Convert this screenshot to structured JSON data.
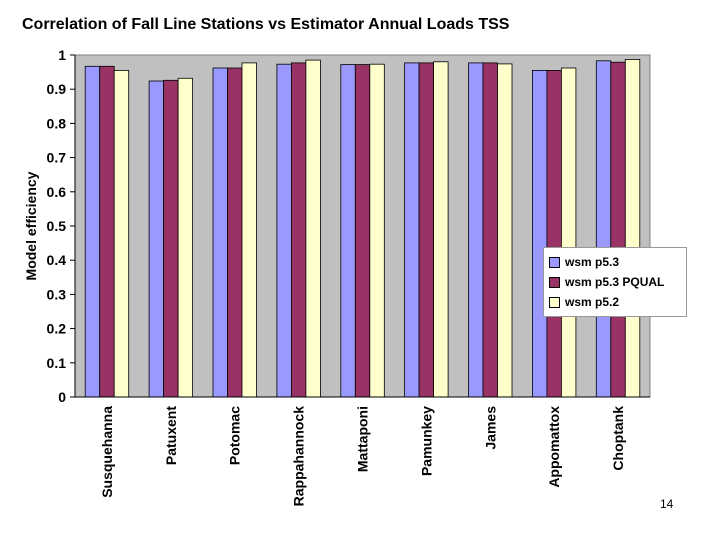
{
  "slide": {
    "number": "14"
  },
  "colors": {
    "plot_bg": "#c0c0c0",
    "s1": "#9999ff",
    "s2": "#993366",
    "s3": "#ffffcc"
  },
  "chart_data": {
    "type": "bar",
    "title": "Correlation of Fall Line Stations vs Estimator Annual Loads TSS",
    "xlabel": "",
    "ylabel": "Model efficiency",
    "ylim": [
      0,
      1
    ],
    "yticks": [
      "0",
      "0.1",
      "0.2",
      "0.3",
      "0.4",
      "0.5",
      "0.6",
      "0.7",
      "0.8",
      "0.9",
      "1"
    ],
    "grid": false,
    "legend_position": "right",
    "categories": [
      "Susquehanna",
      "Patuxent",
      "Potomac",
      "Rappahannock",
      "Mattaponi",
      "Pamunkey",
      "James",
      "Appomattox",
      "Choptank"
    ],
    "series": [
      {
        "name": "wsm p5.3",
        "values": [
          0.967,
          0.924,
          0.962,
          0.973,
          0.972,
          0.977,
          0.977,
          0.955,
          0.983
        ]
      },
      {
        "name": "wsm p5.3 PQUAL",
        "values": [
          0.967,
          0.926,
          0.962,
          0.977,
          0.972,
          0.977,
          0.977,
          0.955,
          0.979
        ]
      },
      {
        "name": "wsm p5.2",
        "values": [
          0.955,
          0.932,
          0.977,
          0.985,
          0.973,
          0.98,
          0.974,
          0.962,
          0.987
        ]
      }
    ]
  }
}
